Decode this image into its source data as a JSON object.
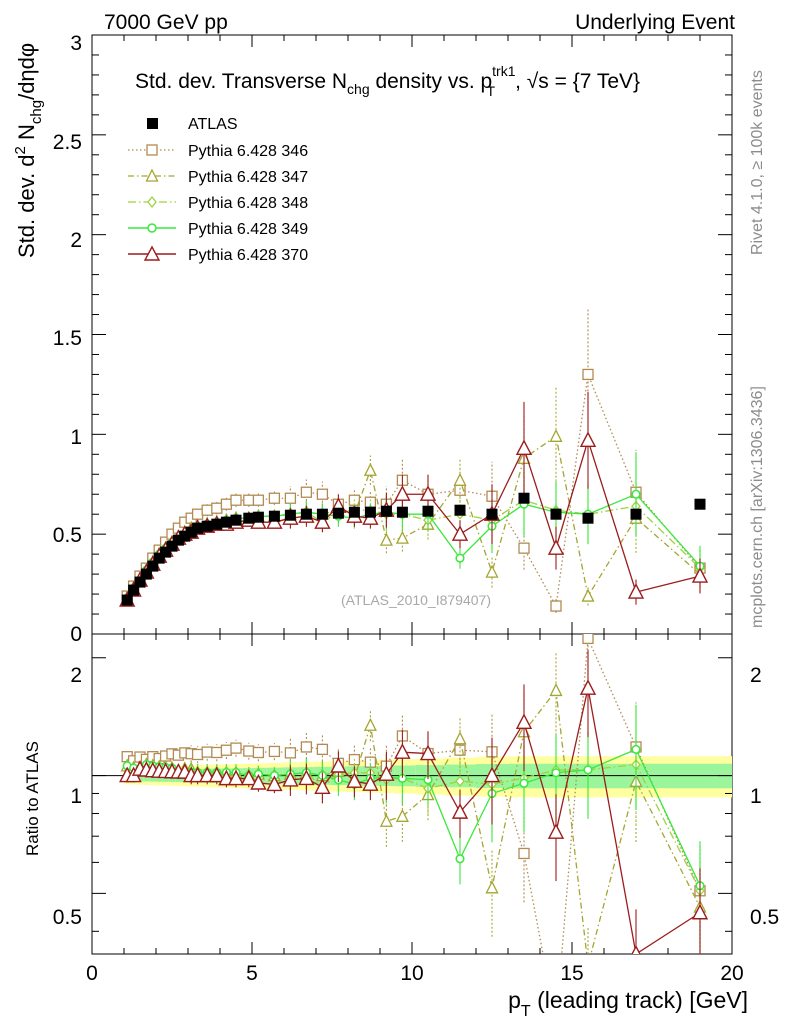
{
  "header": {
    "left": "7000 GeV pp",
    "right": "Underlying Event"
  },
  "side_labels": {
    "rivet": "Rivet 4.1.0, ≥ 100k events",
    "mcplots": "mcplots.cern.ch [arXiv:1306.3436]"
  },
  "watermark": "(ATLAS_2010_I879407)",
  "chart_data": {
    "type": "scatter",
    "title": "Std. dev. Transverse Nchg density vs. pT trk1, √s = {7 TeV}",
    "title_parts": {
      "a": "Std. dev. Transverse N",
      "a_sub": "chg",
      "b": " density vs. p",
      "b_sup": "trk1",
      "b_sub": "T",
      "c": ", √s = {7 TeV}"
    },
    "xlabel": "pT (leading track) [GeV]",
    "xlabel_parts": {
      "a": "p",
      "sub": "T",
      "b": " (leading track) [GeV]"
    },
    "ylabel": "Std. dev. d2 Nchg/dηdφ",
    "ylabel_parts": {
      "a": "Std. dev. d",
      "sup": "2",
      "b": " N",
      "sub": "chg",
      "c": "/dηdφ"
    },
    "ratio_ylabel": "Ratio to ATLAS",
    "xlim": [
      0,
      20
    ],
    "ylim": [
      0,
      3
    ],
    "ratio_ylim": [
      0.35,
      2.3
    ],
    "x_ticks": [
      "0",
      "5",
      "10",
      "15",
      "20"
    ],
    "y_ticks": [
      "0",
      "0.5",
      "1",
      "1.5",
      "2",
      "2.5",
      "3"
    ],
    "ratio_ticks": [
      "0.5",
      "1",
      "2"
    ],
    "x": [
      1.1,
      1.3,
      1.5,
      1.7,
      1.9,
      2.1,
      2.3,
      2.5,
      2.7,
      2.9,
      3.1,
      3.3,
      3.6,
      3.9,
      4.2,
      4.5,
      4.9,
      5.2,
      5.7,
      6.2,
      6.7,
      7.2,
      7.7,
      8.2,
      8.7,
      9.2,
      9.7,
      10.5,
      11.5,
      12.5,
      13.5,
      14.5,
      15.5,
      17.0,
      19.0
    ],
    "series": [
      {
        "name": "ATLAS",
        "color": "#000000",
        "values": [
          0.17,
          0.22,
          0.26,
          0.3,
          0.34,
          0.38,
          0.41,
          0.44,
          0.47,
          0.49,
          0.51,
          0.53,
          0.54,
          0.55,
          0.56,
          0.57,
          0.58,
          0.585,
          0.59,
          0.595,
          0.6,
          0.6,
          0.605,
          0.61,
          0.61,
          0.615,
          0.61,
          0.615,
          0.62,
          0.6,
          0.68,
          0.6,
          0.58,
          0.6,
          0.65
        ]
      },
      {
        "name": "Pythia 6.428 346",
        "color": "#b28b52",
        "values": [
          0.19,
          0.24,
          0.29,
          0.33,
          0.38,
          0.42,
          0.46,
          0.5,
          0.53,
          0.56,
          0.58,
          0.6,
          0.62,
          0.63,
          0.65,
          0.67,
          0.67,
          0.67,
          0.68,
          0.68,
          0.71,
          0.7,
          0.65,
          0.67,
          0.66,
          0.65,
          0.77,
          0.7,
          0.72,
          0.69,
          0.43,
          0.14,
          1.3,
          0.71,
          0.33
        ]
      },
      {
        "name": "Pythia 6.428 347",
        "color": "#a5a532",
        "values": [
          0.18,
          0.23,
          0.27,
          0.32,
          0.36,
          0.4,
          0.43,
          0.46,
          0.48,
          0.51,
          0.53,
          0.54,
          0.55,
          0.56,
          0.57,
          0.58,
          0.58,
          0.59,
          0.59,
          0.6,
          0.61,
          0.6,
          0.62,
          0.6,
          0.82,
          0.47,
          0.48,
          0.55,
          0.77,
          0.31,
          0.88,
          0.99,
          0.19,
          0.58,
          0.3
        ]
      },
      {
        "name": "Pythia 6.428 348",
        "color": "#9ed23f",
        "values": [
          0.18,
          0.23,
          0.27,
          0.32,
          0.36,
          0.4,
          0.43,
          0.46,
          0.48,
          0.5,
          0.52,
          0.54,
          0.55,
          0.56,
          0.57,
          0.58,
          0.58,
          0.59,
          0.59,
          0.6,
          0.61,
          0.56,
          0.61,
          0.62,
          0.62,
          0.6,
          0.6,
          0.57,
          0.6,
          0.57,
          0.67,
          0.62,
          0.6,
          0.64,
          0.33
        ]
      },
      {
        "name": "Pythia 6.428 349",
        "color": "#3ce83c",
        "values": [
          0.18,
          0.23,
          0.27,
          0.32,
          0.36,
          0.4,
          0.43,
          0.46,
          0.48,
          0.5,
          0.52,
          0.54,
          0.55,
          0.56,
          0.57,
          0.58,
          0.58,
          0.59,
          0.59,
          0.6,
          0.61,
          0.6,
          0.59,
          0.58,
          0.6,
          0.61,
          0.6,
          0.6,
          0.38,
          0.54,
          0.65,
          0.61,
          0.6,
          0.7,
          0.34
        ]
      },
      {
        "name": "Pythia 6.428 370",
        "color": "#9b1c1c",
        "values": [
          0.17,
          0.22,
          0.27,
          0.31,
          0.35,
          0.39,
          0.42,
          0.45,
          0.48,
          0.5,
          0.51,
          0.53,
          0.54,
          0.55,
          0.55,
          0.56,
          0.57,
          0.56,
          0.56,
          0.58,
          0.59,
          0.56,
          0.64,
          0.59,
          0.58,
          0.62,
          0.7,
          0.7,
          0.5,
          0.6,
          0.93,
          0.43,
          0.97,
          0.21,
          0.29
        ]
      }
    ],
    "legend": [
      "ATLAS",
      "Pythia 6.428 346",
      "Pythia 6.428 347",
      "Pythia 6.428 348",
      "Pythia 6.428 349",
      "Pythia 6.428 370"
    ],
    "legend_position": "top-left"
  }
}
